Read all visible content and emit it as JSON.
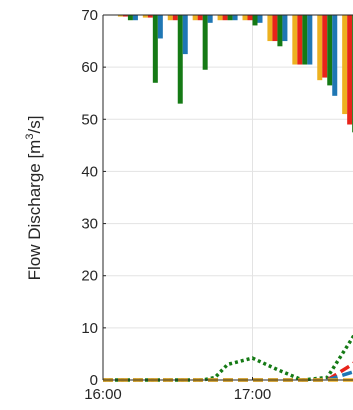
{
  "chart_data": {
    "type": "bar+line",
    "ylabel_base": "Flow Discharge [m",
    "ylabel_sup": "3",
    "ylabel_end": "/s]",
    "ylim": [
      0,
      70
    ],
    "yticks": [
      0,
      10,
      20,
      30,
      40,
      50,
      60,
      70
    ],
    "xlim": [
      "16:00",
      "17:50"
    ],
    "xticks": [
      "16:00",
      "17:00"
    ],
    "grid": true,
    "colors": {
      "yellow": "#EDB120",
      "red": "#E8231A",
      "green": "#157A15",
      "blue": "#1F77B4"
    },
    "bars": {
      "baseline": 70,
      "times": [
        "16:10",
        "16:20",
        "16:30",
        "16:40",
        "16:50",
        "17:00",
        "17:10",
        "17:20",
        "17:30",
        "17:40",
        "17:50"
      ],
      "series": [
        {
          "color": "yellow",
          "values": [
            0.3,
            0.5,
            1,
            1,
            1,
            1,
            5,
            9.5,
            12.5,
            19,
            11
          ]
        },
        {
          "color": "red",
          "values": [
            0.3,
            0.5,
            1,
            1,
            1,
            1,
            5,
            9.5,
            12,
            21,
            11
          ]
        },
        {
          "color": "green",
          "values": [
            1,
            13,
            17,
            10.5,
            1,
            2,
            6,
            9.5,
            13.5,
            22.5,
            23
          ]
        },
        {
          "color": "blue",
          "values": [
            1,
            4.5,
            7.5,
            1.5,
            1,
            1.5,
            5,
            9.5,
            15.5,
            22,
            23
          ]
        }
      ]
    },
    "lines": [
      {
        "color": "green",
        "style": "dotted",
        "points": [
          [
            "16:00",
            0
          ],
          [
            "16:30",
            0
          ],
          [
            "16:40",
            0
          ],
          [
            "16:45",
            0.5
          ],
          [
            "16:50",
            3
          ],
          [
            "17:00",
            4.2
          ],
          [
            "17:10",
            2
          ],
          [
            "17:20",
            0
          ],
          [
            "17:30",
            0.5
          ],
          [
            "17:40",
            8
          ],
          [
            "17:50",
            16
          ]
        ]
      },
      {
        "color": "red",
        "style": "dashed",
        "points": [
          [
            "16:00",
            0
          ],
          [
            "17:30",
            0
          ],
          [
            "17:40",
            3
          ],
          [
            "17:50",
            7
          ]
        ]
      },
      {
        "color": "blue",
        "style": "dashed",
        "points": [
          [
            "16:00",
            0
          ],
          [
            "17:30",
            0
          ],
          [
            "17:40",
            1.5
          ],
          [
            "17:50",
            4
          ]
        ]
      },
      {
        "color": "yellow",
        "style": "dashed",
        "points": [
          [
            "16:00",
            0
          ],
          [
            "17:50",
            0
          ]
        ]
      }
    ]
  }
}
